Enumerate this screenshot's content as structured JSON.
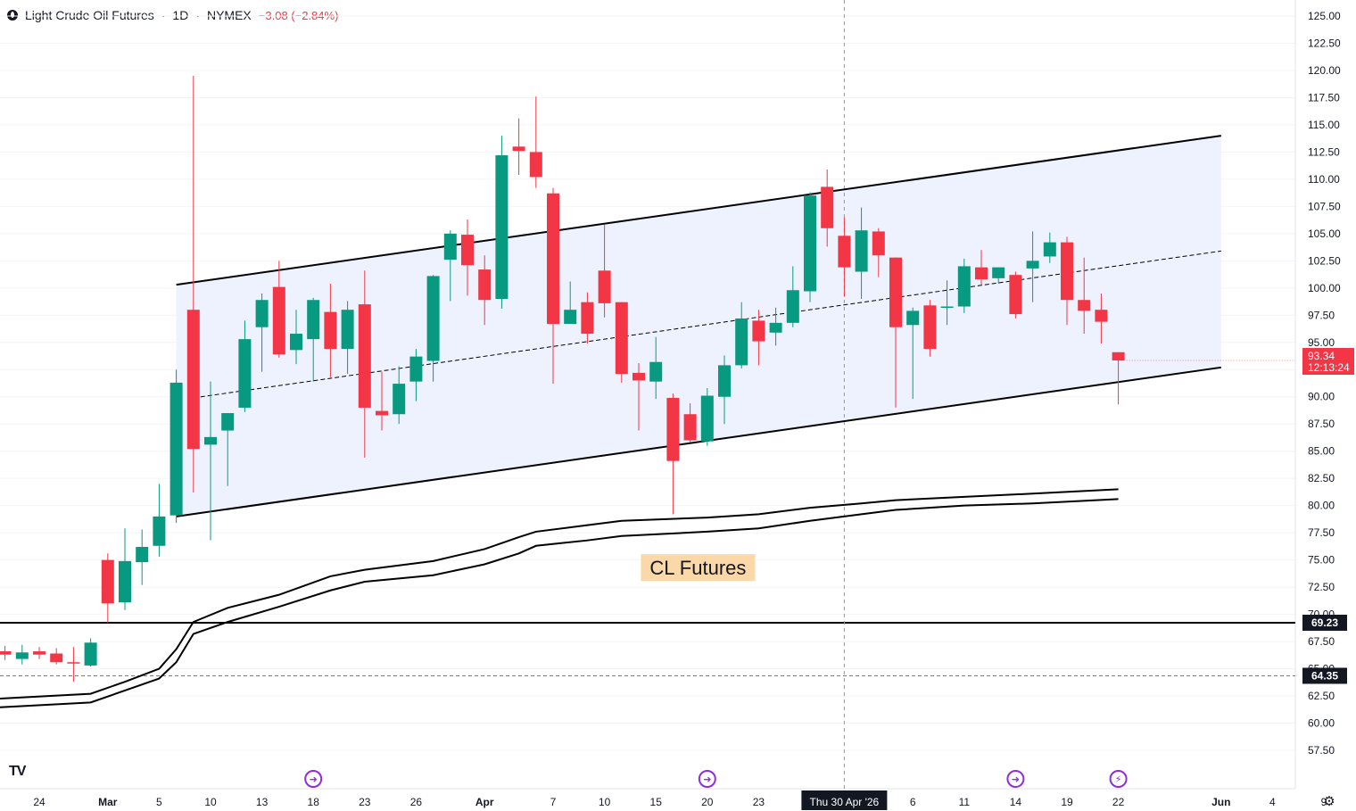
{
  "header": {
    "title": "Light Crude Oil Futures",
    "separator1": "·",
    "timeframe": "1D",
    "separator2": "·",
    "exchange": "NYMEX",
    "change": "−3.08 (−2.84%)"
  },
  "colors": {
    "up": "#089981",
    "down": "#f23645",
    "channel_fill": "#eef2ff",
    "line": "#000000",
    "label_bg": "#fbd8a8"
  },
  "chart_data": {
    "type": "candlestick",
    "title": "Light Crude Oil Futures",
    "yaxis": {
      "min": 56.5,
      "max": 125.8,
      "ticks": [
        "125.00",
        "122.50",
        "120.00",
        "117.50",
        "115.00",
        "112.50",
        "110.00",
        "107.50",
        "105.00",
        "102.50",
        "100.00",
        "97.50",
        "95.00",
        "92.50",
        "90.00",
        "87.50",
        "85.00",
        "82.50",
        "80.00",
        "77.50",
        "75.00",
        "72.50",
        "70.00",
        "67.50",
        "65.00",
        "62.50",
        "60.00",
        "57.50"
      ]
    },
    "xaxis_labels": [
      "24",
      "Mar",
      "5",
      "10",
      "13",
      "18",
      "23",
      "26",
      "Apr",
      "7",
      "10",
      "15",
      "20",
      "23",
      "Thu 30 Apr '26",
      "6",
      "11",
      "14",
      "19",
      "22",
      "Jun",
      "4",
      "9"
    ],
    "candles": [
      {
        "date": "Feb 20",
        "o": 66.6,
        "h": 67.1,
        "l": 65.8,
        "c": 66.3
      },
      {
        "date": "Feb 23",
        "o": 65.9,
        "h": 67.2,
        "l": 65.4,
        "c": 66.5
      },
      {
        "date": "Feb 24",
        "o": 66.6,
        "h": 67.0,
        "l": 65.9,
        "c": 66.3
      },
      {
        "date": "Feb 25",
        "o": 66.4,
        "h": 66.9,
        "l": 65.4,
        "c": 65.6
      },
      {
        "date": "Feb 26",
        "o": 65.6,
        "h": 67.0,
        "l": 63.8,
        "c": 65.5
      },
      {
        "date": "Feb 27",
        "o": 65.3,
        "h": 67.8,
        "l": 65.2,
        "c": 67.4
      },
      {
        "date": "Mar 2",
        "o": 75.0,
        "h": 75.6,
        "l": 69.2,
        "c": 71.0
      },
      {
        "date": "Mar 3",
        "o": 71.1,
        "h": 77.9,
        "l": 70.4,
        "c": 74.9
      },
      {
        "date": "Mar 4",
        "o": 74.8,
        "h": 77.8,
        "l": 72.7,
        "c": 76.2
      },
      {
        "date": "Mar 5",
        "o": 76.3,
        "h": 82.0,
        "l": 75.3,
        "c": 79.0
      },
      {
        "date": "Mar 6",
        "o": 79.1,
        "h": 92.5,
        "l": 78.4,
        "c": 91.3
      },
      {
        "date": "Mar 9",
        "o": 98.0,
        "h": 119.5,
        "l": 81.2,
        "c": 85.2
      },
      {
        "date": "Mar 10",
        "o": 85.6,
        "h": 91.4,
        "l": 76.8,
        "c": 86.3
      },
      {
        "date": "Mar 11",
        "o": 86.9,
        "h": 88.2,
        "l": 81.8,
        "c": 88.5
      },
      {
        "date": "Mar 12",
        "o": 89.0,
        "h": 97.0,
        "l": 88.6,
        "c": 95.3
      },
      {
        "date": "Mar 13",
        "o": 96.4,
        "h": 99.5,
        "l": 92.3,
        "c": 98.9
      },
      {
        "date": "Mar 16",
        "o": 100.1,
        "h": 102.5,
        "l": 93.6,
        "c": 93.9
      },
      {
        "date": "Mar 17",
        "o": 94.3,
        "h": 98.0,
        "l": 93.0,
        "c": 95.8
      },
      {
        "date": "Mar 18",
        "o": 95.3,
        "h": 99.1,
        "l": 91.4,
        "c": 98.9
      },
      {
        "date": "Mar 19",
        "o": 97.8,
        "h": 100.4,
        "l": 91.8,
        "c": 94.4
      },
      {
        "date": "Mar 20",
        "o": 94.4,
        "h": 98.8,
        "l": 92.1,
        "c": 98.0
      },
      {
        "date": "Mar 23",
        "o": 98.5,
        "h": 101.6,
        "l": 84.4,
        "c": 89.0
      },
      {
        "date": "Mar 24",
        "o": 88.7,
        "h": 92.3,
        "l": 86.9,
        "c": 88.3
      },
      {
        "date": "Mar 25",
        "o": 88.4,
        "h": 92.8,
        "l": 87.5,
        "c": 91.2
      },
      {
        "date": "Mar 26",
        "o": 91.4,
        "h": 94.4,
        "l": 89.6,
        "c": 93.7
      },
      {
        "date": "Mar 27",
        "o": 93.3,
        "h": 101.2,
        "l": 91.4,
        "c": 101.1
      },
      {
        "date": "Mar 30",
        "o": 102.6,
        "h": 105.3,
        "l": 98.8,
        "c": 105.0
      },
      {
        "date": "Mar 31",
        "o": 104.9,
        "h": 106.3,
        "l": 99.3,
        "c": 102.1
      },
      {
        "date": "Apr 1",
        "o": 101.7,
        "h": 103.0,
        "l": 96.6,
        "c": 98.9
      },
      {
        "date": "Apr 2",
        "o": 99.0,
        "h": 114.0,
        "l": 98.1,
        "c": 112.2
      },
      {
        "date": "Apr 3",
        "o": 113.0,
        "h": 115.6,
        "l": 110.4,
        "c": 112.6
      },
      {
        "date": "Apr 6",
        "o": 112.5,
        "h": 117.6,
        "l": 109.2,
        "c": 110.2
      },
      {
        "date": "Apr 7",
        "o": 108.7,
        "h": 109.2,
        "l": 91.2,
        "c": 96.7
      },
      {
        "date": "Apr 8",
        "o": 96.7,
        "h": 100.6,
        "l": 96.7,
        "c": 98.0
      },
      {
        "date": "Apr 9",
        "o": 98.7,
        "h": 99.6,
        "l": 94.9,
        "c": 95.8
      },
      {
        "date": "Apr 10",
        "o": 101.6,
        "h": 105.8,
        "l": 97.3,
        "c": 98.6
      },
      {
        "date": "Apr 13",
        "o": 98.7,
        "h": 98.7,
        "l": 91.3,
        "c": 92.1
      },
      {
        "date": "Apr 14",
        "o": 92.2,
        "h": 93.1,
        "l": 86.9,
        "c": 91.5
      },
      {
        "date": "Apr 15",
        "o": 91.4,
        "h": 95.5,
        "l": 89.8,
        "c": 93.2
      },
      {
        "date": "Apr 16",
        "o": 89.9,
        "h": 90.3,
        "l": 79.2,
        "c": 84.1
      },
      {
        "date": "Apr 17",
        "o": 88.4,
        "h": 89.4,
        "l": 85.8,
        "c": 86.0
      },
      {
        "date": "Apr 20",
        "o": 85.9,
        "h": 90.8,
        "l": 85.5,
        "c": 90.1
      },
      {
        "date": "Apr 21",
        "o": 90.0,
        "h": 93.8,
        "l": 87.5,
        "c": 92.9
      },
      {
        "date": "Apr 22",
        "o": 92.9,
        "h": 98.7,
        "l": 92.6,
        "c": 97.2
      },
      {
        "date": "Apr 23",
        "o": 97.0,
        "h": 98.0,
        "l": 92.9,
        "c": 95.1
      },
      {
        "date": "Apr 24",
        "o": 95.9,
        "h": 98.2,
        "l": 94.7,
        "c": 96.8
      },
      {
        "date": "Apr 27",
        "o": 96.8,
        "h": 102.0,
        "l": 96.4,
        "c": 99.8
      },
      {
        "date": "Apr 28",
        "o": 99.7,
        "h": 108.8,
        "l": 98.7,
        "c": 108.5
      },
      {
        "date": "Apr 29",
        "o": 109.3,
        "h": 110.9,
        "l": 103.8,
        "c": 105.5
      },
      {
        "date": "Apr 30",
        "o": 104.8,
        "h": 106.5,
        "l": 99.2,
        "c": 101.9
      },
      {
        "date": "May 1",
        "o": 101.5,
        "h": 107.4,
        "l": 99.0,
        "c": 105.3
      },
      {
        "date": "May 4",
        "o": 105.2,
        "h": 105.5,
        "l": 101.0,
        "c": 103.0
      },
      {
        "date": "May 5",
        "o": 102.8,
        "h": 102.8,
        "l": 89.0,
        "c": 96.4
      },
      {
        "date": "May 6",
        "o": 96.6,
        "h": 98.2,
        "l": 89.8,
        "c": 97.9
      },
      {
        "date": "May 7",
        "o": 98.4,
        "h": 98.9,
        "l": 93.7,
        "c": 94.4
      },
      {
        "date": "May 8",
        "o": 98.3,
        "h": 100.7,
        "l": 96.6,
        "c": 98.3
      },
      {
        "date": "May 11",
        "o": 98.3,
        "h": 102.7,
        "l": 97.7,
        "c": 102.0
      },
      {
        "date": "May 12",
        "o": 101.9,
        "h": 103.5,
        "l": 100.3,
        "c": 100.8
      },
      {
        "date": "May 13",
        "o": 100.9,
        "h": 101.9,
        "l": 100.4,
        "c": 101.9
      },
      {
        "date": "May 14",
        "o": 101.2,
        "h": 101.5,
        "l": 97.2,
        "c": 97.6
      },
      {
        "date": "May 15",
        "o": 101.8,
        "h": 105.2,
        "l": 98.7,
        "c": 102.5
      },
      {
        "date": "May 18",
        "o": 102.9,
        "h": 105.1,
        "l": 102.3,
        "c": 104.2
      },
      {
        "date": "May 19",
        "o": 104.2,
        "h": 104.7,
        "l": 96.6,
        "c": 98.9
      },
      {
        "date": "May 20",
        "o": 98.9,
        "h": 102.8,
        "l": 95.8,
        "c": 97.9
      },
      {
        "date": "May 21",
        "o": 98.0,
        "h": 99.5,
        "l": 94.9,
        "c": 96.9
      },
      {
        "date": "May 22",
        "o": 94.1,
        "h": 94.1,
        "l": 89.3,
        "c": 93.34
      }
    ],
    "channel": {
      "upper": [
        {
          "date": "Mar 6",
          "value": 100.3
        },
        {
          "date": "Jun 1",
          "value": 114.0
        }
      ],
      "lower": [
        {
          "date": "Mar 6",
          "value": 79.0
        },
        {
          "date": "Jun 1",
          "value": 92.7
        }
      ],
      "mid": [
        {
          "date": "Mar 9",
          "value": 89.9
        },
        {
          "date": "Jun 1",
          "value": 103.4
        }
      ]
    },
    "moving_averages": [
      {
        "points": [
          [
            "Feb 19",
            62.2
          ],
          [
            "Feb 27",
            62.7
          ],
          [
            "Mar 3",
            63.8
          ],
          [
            "Mar 5",
            65.0
          ],
          [
            "Mar 6",
            66.8
          ],
          [
            "Mar 9",
            69.3
          ],
          [
            "Mar 11",
            70.6
          ],
          [
            "Mar 16",
            71.8
          ],
          [
            "Mar 19",
            73.5
          ],
          [
            "Mar 23",
            74.1
          ],
          [
            "Mar 27",
            74.9
          ],
          [
            "Apr 1",
            76.0
          ],
          [
            "Apr 3",
            77.1
          ],
          [
            "Apr 6",
            77.6
          ],
          [
            "Apr 9",
            78.2
          ],
          [
            "Apr 13",
            78.6
          ],
          [
            "Apr 20",
            78.9
          ],
          [
            "Apr 23",
            79.2
          ],
          [
            "Apr 28",
            79.8
          ],
          [
            "May 1",
            80.2
          ],
          [
            "May 5",
            80.5
          ],
          [
            "May 11",
            80.8
          ],
          [
            "May 15",
            81.1
          ],
          [
            "May 22",
            81.5
          ]
        ]
      },
      {
        "points": [
          [
            "Feb 19",
            61.4
          ],
          [
            "Feb 27",
            61.9
          ],
          [
            "Mar 3",
            63.0
          ],
          [
            "Mar 5",
            64.1
          ],
          [
            "Mar 6",
            65.6
          ],
          [
            "Mar 9",
            68.2
          ],
          [
            "Mar 11",
            69.3
          ],
          [
            "Mar 16",
            70.7
          ],
          [
            "Mar 19",
            72.2
          ],
          [
            "Mar 23",
            73.0
          ],
          [
            "Mar 27",
            73.6
          ],
          [
            "Apr 1",
            74.6
          ],
          [
            "Apr 3",
            75.6
          ],
          [
            "Apr 6",
            76.3
          ],
          [
            "Apr 9",
            76.8
          ],
          [
            "Apr 13",
            77.2
          ],
          [
            "Apr 20",
            77.6
          ],
          [
            "Apr 23",
            77.9
          ],
          [
            "Apr 28",
            78.6
          ],
          [
            "May 1",
            79.2
          ],
          [
            "May 5",
            79.6
          ],
          [
            "May 11",
            80.0
          ],
          [
            "May 15",
            80.2
          ],
          [
            "May 22",
            80.6
          ]
        ]
      }
    ],
    "horizontal_lines": [
      {
        "value": 69.23,
        "style": "solid",
        "label": "69.23"
      },
      {
        "value": 64.35,
        "style": "dashed",
        "label": "64.35"
      }
    ],
    "price_label": {
      "value": "93.34",
      "countdown": "12:13:24"
    },
    "crosshair": {
      "date": "Apr 30",
      "label": "Thu 30 Apr '26"
    },
    "annotation": {
      "text": "CL Futures",
      "date": "Apr 16",
      "value": 74.3
    },
    "event_markers": [
      {
        "date": "Mar 18",
        "kind": "dividend"
      },
      {
        "date": "Apr 20",
        "kind": "dividend"
      },
      {
        "date": "May 14",
        "kind": "dividend"
      },
      {
        "date": "May 22",
        "kind": "earnings"
      }
    ]
  }
}
